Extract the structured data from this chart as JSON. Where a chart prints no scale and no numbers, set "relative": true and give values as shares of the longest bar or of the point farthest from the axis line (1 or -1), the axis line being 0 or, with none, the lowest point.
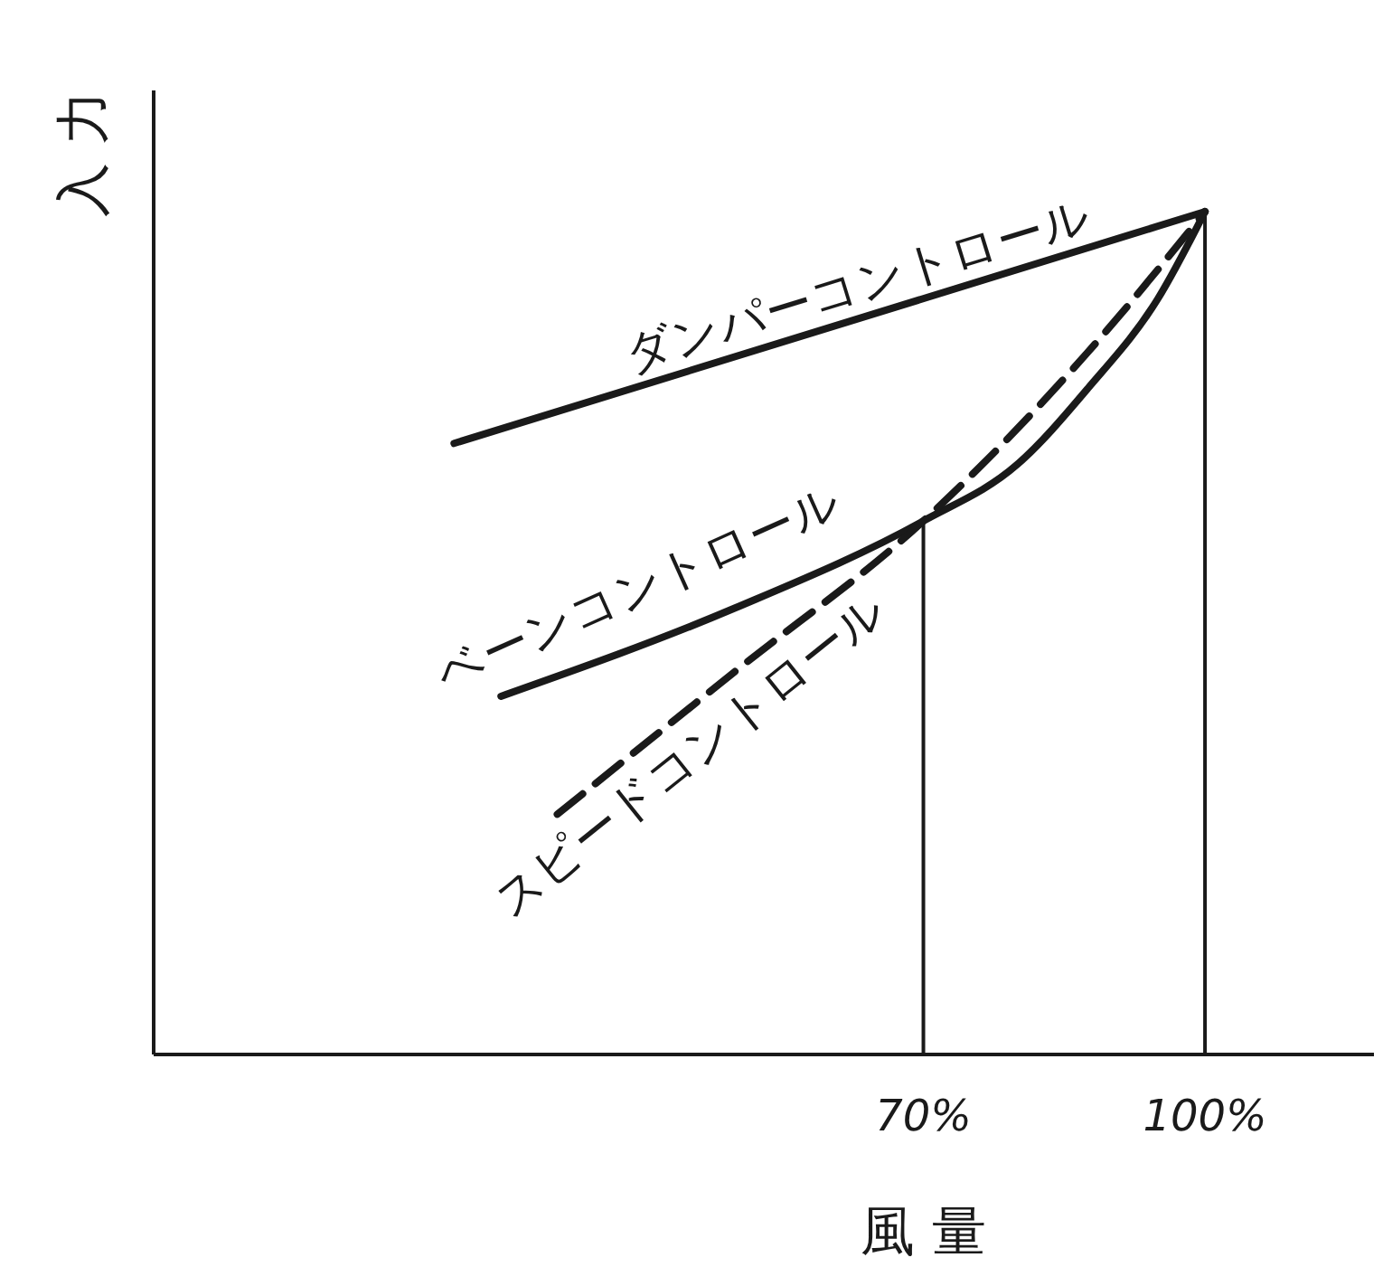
{
  "chart_data": {
    "type": "line",
    "relative": true,
    "xlabel": "風 量",
    "ylabel": "入 力",
    "xlim": [
      -12,
      118
    ],
    "xticks": [
      {
        "value": 70,
        "label": "70%"
      },
      {
        "value": 100,
        "label": "100%"
      }
    ],
    "marker": "none",
    "series": [
      {
        "name": "ダンパーコントロール",
        "color": "#1a1a1a",
        "line_style": "solid",
        "x": [
          20,
          100
        ],
        "values": [
          0.725,
          1
        ]
      },
      {
        "name": "ベーンコントロール",
        "color": "#1a1a1a",
        "line_style": "solid",
        "x": [
          25,
          50,
          70,
          80,
          87.5,
          95,
          100
        ],
        "values": [
          0.425,
          0.53,
          0.633,
          0.7,
          0.79,
          0.897,
          1
        ]
      },
      {
        "name": "スピードコントロール",
        "color": "#1a1a1a",
        "line_style": "dashed",
        "x": [
          31,
          50,
          70,
          87.5,
          100
        ],
        "values": [
          0.285,
          0.455,
          0.633,
          0.833,
          1
        ]
      }
    ],
    "ref_lines": [
      {
        "axis": "x",
        "value": 70,
        "color": "#1a1a1a"
      },
      {
        "axis": "x",
        "value": 100,
        "color": "#1a1a1a"
      }
    ]
  }
}
